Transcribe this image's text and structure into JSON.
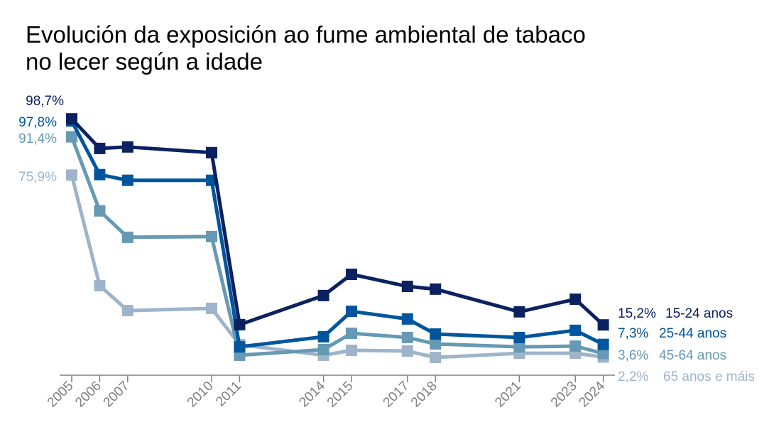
{
  "chart_data": {
    "type": "line",
    "title_lines": [
      "Evolución da exposición ao fume ambiental de tabaco",
      "no lecer según a idade"
    ],
    "x": [
      2005,
      2006,
      2007,
      2010,
      2011,
      2014,
      2015,
      2017,
      2018,
      2021,
      2023,
      2024
    ],
    "x_tick_labels": [
      "2005",
      "2006",
      "2007",
      "2010",
      "2011",
      "2014",
      "2015",
      "2017",
      "2018",
      "2021",
      "2023",
      "2024"
    ],
    "ylim": [
      0,
      100
    ],
    "grid": false,
    "series": [
      {
        "name": "15-24 anos",
        "color": "#0b2160",
        "values": [
          98.7,
          86.7,
          87.3,
          85.0,
          15.3,
          27.1,
          35.7,
          30.8,
          29.7,
          20.5,
          25.6,
          15.2
        ],
        "start_label": "98,7%",
        "end_label": "15,2%"
      },
      {
        "name": "25-44 anos",
        "color": "#00569e",
        "values": [
          97.8,
          76.1,
          73.8,
          73.8,
          6.3,
          10.4,
          20.7,
          17.6,
          11.5,
          10.1,
          13.0,
          7.3
        ],
        "start_label": "97,8%",
        "end_label": "7,3%"
      },
      {
        "name": "45-64 anos",
        "color": "#6699b4",
        "values": [
          91.4,
          61.4,
          50.7,
          51.0,
          2.9,
          5.2,
          11.8,
          10.1,
          7.5,
          6.3,
          6.6,
          3.6
        ],
        "start_label": "91,4%",
        "end_label": "3,6%"
      },
      {
        "name": "65 anos e máis",
        "color": "#9db4ca",
        "values": [
          75.9,
          31.1,
          21.0,
          21.9,
          7.2,
          2.9,
          4.9,
          4.6,
          2.0,
          3.7,
          3.7,
          2.2
        ],
        "start_label": "75,9%",
        "end_label": "2,2%"
      }
    ]
  }
}
